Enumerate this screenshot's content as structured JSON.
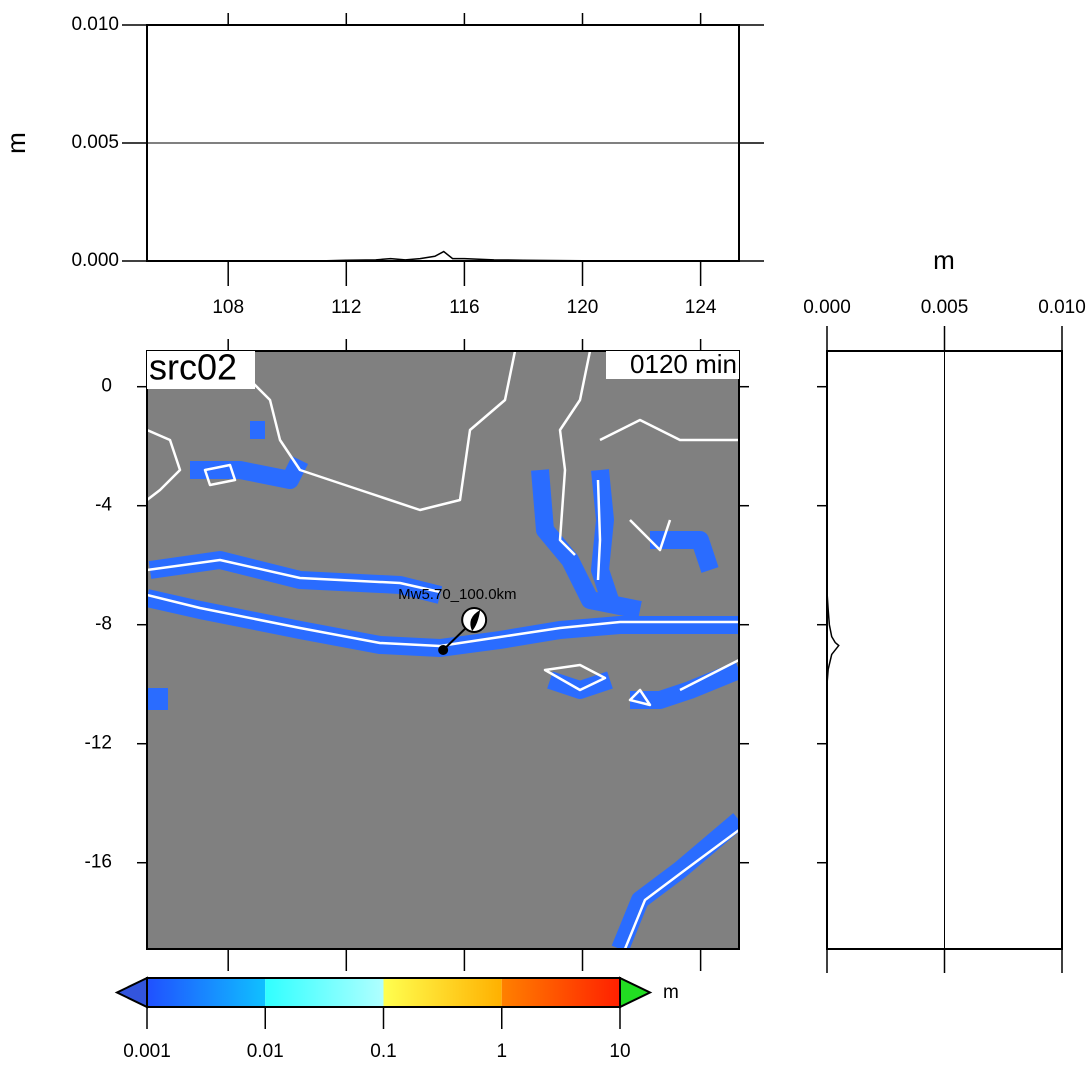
{
  "top_profile": {
    "ylabel": "m",
    "xlim": [
      105.25,
      125.3
    ],
    "ylim": [
      0,
      0.01
    ],
    "xticks": [
      108,
      112,
      116,
      120,
      124
    ],
    "yticks": [
      {
        "value": 0,
        "label": "0.000"
      },
      {
        "value": 0.005,
        "label": "0.005"
      },
      {
        "value": 0.01,
        "label": "0.010"
      }
    ],
    "x": [
      110,
      111,
      112,
      113,
      113.5,
      114,
      114.5,
      115,
      115.3,
      115.6,
      116,
      117,
      118,
      119,
      120,
      120.5
    ],
    "values": [
      0,
      0,
      3e-05,
      5e-05,
      0.0001,
      5e-05,
      0.0001,
      0.0002,
      0.0004,
      0.0001,
      0.0001,
      5e-05,
      3e-05,
      2e-05,
      1e-05,
      0
    ]
  },
  "right_profile": {
    "xlabel": "m",
    "xlim": [
      0,
      0.01
    ],
    "xticks": [
      {
        "value": 0,
        "label": "0.000"
      },
      {
        "value": 0.005,
        "label": "0.005"
      },
      {
        "value": 0.01,
        "label": "0.010"
      }
    ],
    "y": [
      -6.9,
      -7.5,
      -8,
      -8.4,
      -8.6,
      -8.7,
      -9,
      -9.5,
      -10
    ],
    "values": [
      0,
      5e-05,
      0.0001,
      0.0002,
      0.00035,
      0.0005,
      0.0002,
      5e-05,
      0
    ]
  },
  "map": {
    "title": "src02",
    "time_label": "0120 min",
    "xlim": [
      105.25,
      125.3
    ],
    "ylim": [
      -18.9,
      1.2
    ],
    "yticks": [
      0,
      -4,
      -8,
      -12,
      -16
    ],
    "land_color": "#808080",
    "wave_color": "#2a6cff",
    "event": {
      "label": "Mw5.70_100.0km",
      "epicenter": [
        115.28,
        -8.85
      ],
      "mechanism_at": [
        116.33,
        -7.84
      ]
    }
  },
  "colorbar": {
    "unit": "m",
    "ticks": [
      0.001,
      0.01,
      0.1,
      1,
      10
    ],
    "segment_colors": [
      [
        "#2050ff",
        "#10c0ff"
      ],
      [
        "#30ffff",
        "#b0ffff"
      ],
      [
        "#ffff50",
        "#ffb000"
      ],
      [
        "#ff8000",
        "#ff2000"
      ]
    ],
    "under_color": "#3355dd",
    "over_color": "#22dd22"
  }
}
